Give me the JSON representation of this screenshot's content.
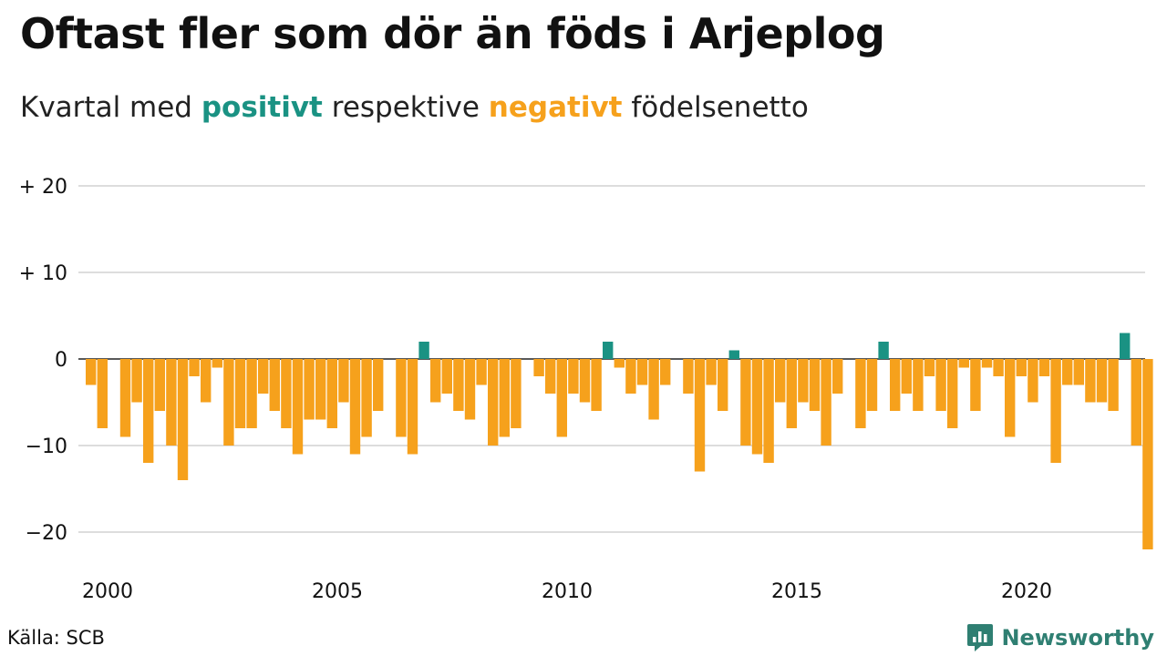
{
  "header": {
    "title": "Oftast fler som dör än föds i Arjeplog",
    "subtitle_prefix": "Kvartal med",
    "subtitle_positive": "positivt",
    "subtitle_middle": "respektive",
    "subtitle_negative": "negativt",
    "subtitle_suffix": "födelsenetto"
  },
  "colors": {
    "positive": "#1a9283",
    "negative": "#f6a11c",
    "grid": "#dddddd",
    "zero_line": "#222222"
  },
  "chart_data": {
    "type": "bar",
    "title": "Oftast fler som dör än föds i Arjeplog",
    "subtitle": "Kvartal med positivt respektive negativt födelsenetto",
    "x_start": 2000,
    "quarter_step": 0.25,
    "values": [
      -3,
      -8,
      0,
      -9,
      -5,
      -12,
      -6,
      -10,
      -14,
      -2,
      -5,
      -1,
      -10,
      -8,
      -8,
      -4,
      -6,
      -8,
      -11,
      -7,
      -7,
      -8,
      -5,
      -11,
      -9,
      -6,
      0,
      -9,
      -11,
      2,
      -5,
      -4,
      -6,
      -7,
      -3,
      -10,
      -9,
      -8,
      0,
      -2,
      -4,
      -9,
      -4,
      -5,
      -6,
      2,
      -1,
      -4,
      -3,
      -7,
      -3,
      0,
      -4,
      -13,
      -3,
      -6,
      1,
      -10,
      -11,
      -12,
      -5,
      -8,
      -5,
      -6,
      -10,
      -4,
      0,
      -8,
      -6,
      2,
      -6,
      -4,
      -6,
      -2,
      -6,
      -8,
      -1,
      -6,
      -1,
      -2,
      -9,
      -2,
      -5,
      -2,
      -12,
      -3,
      -3,
      -5,
      -5,
      -6,
      3,
      -10,
      -22
    ],
    "y_ticks": [
      {
        "value": 20,
        "label": "+ 20"
      },
      {
        "value": 10,
        "label": "+ 10"
      },
      {
        "value": 0,
        "label": "0"
      },
      {
        "value": -10,
        "label": "−10"
      },
      {
        "value": -20,
        "label": "−20"
      }
    ],
    "x_ticks": [
      {
        "value": 2000,
        "label": "2000"
      },
      {
        "value": 2005,
        "label": "2005"
      },
      {
        "value": 2010,
        "label": "2010"
      },
      {
        "value": 2015,
        "label": "2015"
      },
      {
        "value": 2020,
        "label": "2020"
      }
    ],
    "xlim": [
      2000,
      2023.25
    ],
    "ylim": [
      -24,
      20
    ],
    "grid": true,
    "legend": "none"
  },
  "footer": {
    "source": "Källa: SCB",
    "brand": "Newsworthy",
    "brand_icon": "newsworthy-logo-icon"
  }
}
